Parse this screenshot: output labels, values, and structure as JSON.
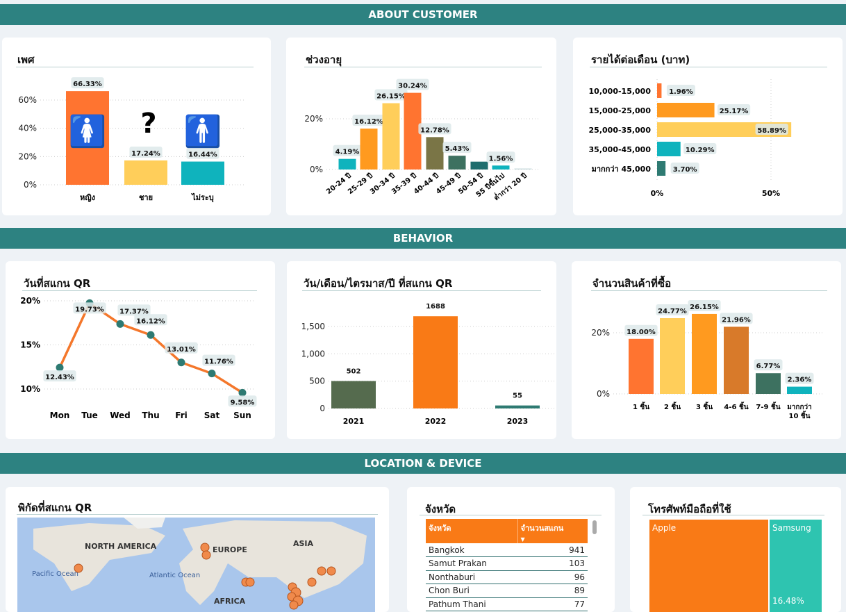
{
  "sections": {
    "customer": "ABOUT CUSTOMER",
    "behavior": "BEHAVIOR",
    "location": "LOCATION & DEVICE"
  },
  "chart_data": [
    {
      "id": "gender",
      "type": "bar",
      "title": "เพศ",
      "categories": [
        "หญิง",
        "ชาย",
        "ไม่ระบุ"
      ],
      "values": [
        66.33,
        17.24,
        16.44
      ],
      "labels": [
        "66.33%",
        "17.24%",
        "16.44%"
      ],
      "icons": [
        "female-icon",
        "question-icon",
        "person-icon"
      ],
      "yticks": [
        "0%",
        "20%",
        "40%",
        "60%"
      ],
      "ylim": [
        0,
        66.33
      ],
      "colors": [
        "#ff7430",
        "#ffce5a",
        "#0fb3bd"
      ]
    },
    {
      "id": "age",
      "type": "bar",
      "title": "ช่วงอายุ",
      "categories": [
        "20-24 ปี",
        "25-29 ปี",
        "30-34 ปี",
        "35-39 ปี",
        "40-44 ปี",
        "45-49 ปี",
        "50-54 ปี",
        "55 ปีขึ้นไป",
        "ต่ำกว่า 20 ปี"
      ],
      "values": [
        4.19,
        16.12,
        26.15,
        30.24,
        12.78,
        5.43,
        3.1,
        1.56,
        0.4
      ],
      "labels": [
        "4.19%",
        "16.12%",
        "26.15%",
        "30.24%",
        "12.78%",
        "5.43%",
        "",
        "1.56%",
        ""
      ],
      "yticks": [
        "0%",
        "20%"
      ],
      "colors": [
        "#0fb3bd",
        "#ff9a1f",
        "#ffce5a",
        "#ff7430",
        "#7a7546",
        "#3d7160",
        "#1f6e6e",
        "#0fb3bd",
        "#c8dadd"
      ]
    },
    {
      "id": "income",
      "type": "bar",
      "orientation": "horizontal",
      "title": "รายได้ต่อเดือน (บาท)",
      "categories": [
        "10,000-15,000",
        "15,000-25,000",
        "25,000-35,000",
        "35,000-45,000",
        "มากกว่า 45,000"
      ],
      "values": [
        1.96,
        25.17,
        58.89,
        10.29,
        3.7
      ],
      "labels": [
        "1.96%",
        "25.17%",
        "58.89%",
        "10.29%",
        "3.70%"
      ],
      "xticks": [
        "0%",
        "50%"
      ],
      "colors": [
        "#ff7430",
        "#ff9a1f",
        "#ffce5a",
        "#0fb3bd",
        "#2e7a72"
      ]
    },
    {
      "id": "weekday",
      "type": "line",
      "title": "วันที่สแกน QR",
      "categories": [
        "Mon",
        "Tue",
        "Wed",
        "Thu",
        "Fri",
        "Sat",
        "Sun"
      ],
      "values": [
        12.43,
        19.73,
        17.37,
        16.12,
        13.01,
        11.76,
        9.58
      ],
      "labels": [
        "12.43%",
        "19.73%",
        "17.37%",
        "16.12%",
        "13.01%",
        "11.76%",
        "9.58%"
      ],
      "yticks": [
        "10%",
        "15%",
        "20%"
      ],
      "colors": [
        "#f4772b",
        "#2e7a72"
      ]
    },
    {
      "id": "year",
      "type": "bar",
      "title": "วัน/เดือน/ไตรมาส/ปี ที่สแกน QR",
      "categories": [
        "2021",
        "2022",
        "2023"
      ],
      "values": [
        502,
        1688,
        55
      ],
      "labels": [
        "502",
        "1688",
        "55"
      ],
      "yticks": [
        "0",
        "500",
        "1,000",
        "1,500"
      ],
      "colors": [
        "#556b4e",
        "#f97a16",
        "#2e7a72"
      ]
    },
    {
      "id": "items",
      "type": "bar",
      "title": "จำนวนสินค้าที่ซื้อ",
      "categories": [
        "1 ชิ้น",
        "2 ชิ้น",
        "3 ชิ้น",
        "4-6 ชิ้น",
        "7-9 ชิ้น",
        "มากกว่า 10 ชิ้น"
      ],
      "values": [
        18.0,
        24.77,
        26.15,
        21.96,
        6.77,
        2.36
      ],
      "labels": [
        "18.00%",
        "24.77%",
        "26.15%",
        "21.96%",
        "6.77%",
        "2.36%"
      ],
      "yticks": [
        "0%",
        "20%"
      ],
      "colors": [
        "#ff7430",
        "#ffce5a",
        "#ff9a1f",
        "#d87a2a",
        "#3d7160",
        "#0fb3bd"
      ]
    }
  ],
  "map": {
    "title": "พิกัดที่สแกน QR",
    "labels": [
      "NORTH AMERICA",
      "EUROPE",
      "ASIA",
      "Pacific Ocean",
      "Atlantic Ocean",
      "AFRICA"
    ]
  },
  "province": {
    "title": "จังหวัด",
    "columns": [
      "จังหวัด",
      "จำนวนสแกน"
    ],
    "rows": [
      [
        "Bangkok",
        "941"
      ],
      [
        "Samut Prakan",
        "103"
      ],
      [
        "Nonthaburi",
        "96"
      ],
      [
        "Chon Buri",
        "89"
      ],
      [
        "Pathum Thani",
        "77"
      ]
    ]
  },
  "phone": {
    "title": "โทรศัพท์มือถือที่ใช้",
    "items": [
      {
        "label": "Apple",
        "color": "#f97a16"
      },
      {
        "label": "Samsung",
        "pct": "16.48%",
        "color": "#2ec4b0"
      }
    ]
  }
}
